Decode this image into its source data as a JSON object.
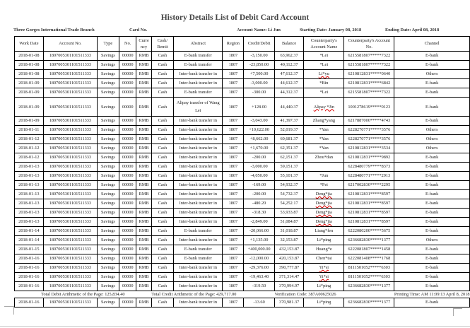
{
  "title": "History Details List of Debit Card Account",
  "info": {
    "branch": "Three Gorges International Trade Branch",
    "card_no": "Card No.",
    "account_name": "Account Name: Li Jun",
    "start": "Starting Date: January 08, 2018",
    "end": "Ending Date: April 08, 2018"
  },
  "headers": [
    "Work Date",
    "Account No.",
    "Type",
    "No.",
    "Curre ncy",
    "Cash/ Remit",
    "Abstract",
    "Region",
    "Credit/Debit",
    "Balance",
    "Counterparty's Account Name",
    "Counterparty's Account No.",
    "Channel"
  ],
  "rows": [
    [
      "2018-01-08",
      "1807005301101511333",
      "Savings",
      "00000",
      "RMB",
      "Cash",
      "E-bank transfer",
      "1807",
      "-3,150.00",
      "63,962.37",
      "*Lei",
      "6215581807*****7322",
      "E-bank"
    ],
    [
      "2018-01-08",
      "1807005301101511333",
      "Savings",
      "00000",
      "RMB",
      "Cash",
      "E-bank transfer",
      "1807",
      "-23,850.00",
      "40,112.37",
      "*Lei",
      "6215581807*****7322",
      "E-bank"
    ],
    [
      "2018-01-08",
      "1807005301101511333",
      "Savings",
      "00000",
      "RMB",
      "Cash",
      "Inter-bank transfer in",
      "1807",
      "+7,500.00",
      "47,612.37",
      "Li*yu",
      "6210812831*****0640",
      "Others"
    ],
    [
      "2018-01-09",
      "1807005301101511333",
      "Savings",
      "00000",
      "RMB",
      "Cash",
      "Inter-bank transfer in",
      "1807",
      "-3,000.00",
      "44,612.37",
      "*Bin",
      "6210812831*****6842",
      "E-bank"
    ],
    [
      "2018-01-09",
      "1807005301101511333",
      "Savings",
      "00000",
      "RMB",
      "Cash",
      "E-bank transfer",
      "1807",
      "-300.00",
      "44,312.37",
      "*Lei",
      "6215581807*****7322",
      "E-bank"
    ],
    [
      "2018-01-09",
      "1807005301101511333",
      "Savings",
      "00000",
      "RMB",
      "Cash",
      "Alipay transfer of Wang Lei",
      "1807",
      "+128.00",
      "44,440.37",
      "Alipay *Jin",
      "1001278619*****0123",
      "E-bank"
    ],
    [
      "2018-01-09",
      "1807005301101511333",
      "Savings",
      "00000",
      "RMB",
      "Cash",
      "Inter-bank transfer in",
      "1807",
      "-3,043.00",
      "41,397.37",
      "Zhang*yang",
      "6217887000*****4743",
      "E-bank"
    ],
    [
      "2018-01-11",
      "1807005301101511333",
      "Savings",
      "00000",
      "RMB",
      "Cash",
      "Inter-bank transfer in",
      "1807",
      "+10,622.00",
      "52,019.37",
      "*Yan",
      "6228270771*****3576",
      "Others"
    ],
    [
      "2018-01-12",
      "1807005301101511333",
      "Savings",
      "00000",
      "RMB",
      "Cash",
      "Inter-bank transfer in",
      "1807",
      "+8,662.00",
      "60,681.37",
      "*Yan",
      "6228270771*****3576",
      "Others"
    ],
    [
      "2018-01-12",
      "1807005301101511333",
      "Savings",
      "00000",
      "RMB",
      "Cash",
      "Inter-bank transfer in",
      "1807",
      "+1,670.00",
      "62,351.37",
      "*Yan",
      "6210812831*****3534",
      "Others"
    ],
    [
      "2018-01-12",
      "1807005301101511333",
      "Savings",
      "00000",
      "RMB",
      "Cash",
      "Inter-bank transfer in",
      "1807",
      "-200.00",
      "62,151.37",
      "Zhou*dan",
      "6210812831*****9892",
      "E-bank"
    ],
    [
      "2018-01-13",
      "1807005301101511333",
      "Savings",
      "00000",
      "RMB",
      "Cash",
      "Inter-bank transfer in",
      "1807",
      "-3,000.00",
      "59,151.37",
      "",
      "6228480779*****8373",
      "E-bank"
    ],
    [
      "2018-01-13",
      "1807005301101511333",
      "Savings",
      "00000",
      "RMB",
      "Cash",
      "Inter-bank transfer in",
      "1807",
      "-4,050.00",
      "55,101.37",
      "*Jun",
      "6228480771*****2913",
      "E-bank"
    ],
    [
      "2018-01-13",
      "1807005301101511333",
      "Savings",
      "00000",
      "RMB",
      "Cash",
      "Inter-bank transfer in",
      "1807",
      "-169.00",
      "54,932.37",
      "*Fei",
      "6217002830*****2295",
      "E-bank"
    ],
    [
      "2018-01-13",
      "1807005301101511333",
      "Savings",
      "00000",
      "RMB",
      "Cash",
      "Inter-bank transfer in",
      "1807",
      "-200.00",
      "54,732.37",
      "Deng*jia",
      "6210812831*****8597",
      "E-bank"
    ],
    [
      "2018-01-13",
      "1807005301101511333",
      "Savings",
      "00000",
      "RMB",
      "Cash",
      "Inter-bank transfer in",
      "1807",
      "-480.20",
      "54,252.17",
      "Deng*jia",
      "6210812831*****8597",
      "E-bank"
    ],
    [
      "2018-01-13",
      "1807005301101511333",
      "Savings",
      "00000",
      "RMB",
      "Cash",
      "Inter-bank transfer in",
      "1807",
      "-318.30",
      "53,933.87",
      "Deng*jia",
      "6210812831*****8597",
      "E-bank"
    ],
    [
      "2018-01-13",
      "1807005301101511333",
      "Savings",
      "00000",
      "RMB",
      "Cash",
      "Inter-bank transfer in",
      "1807",
      "-2,849.00",
      "51,084.87",
      "Deng*jia",
      "6210812831*****8597",
      "E-bank"
    ],
    [
      "2018-01-14",
      "1807005301101511333",
      "Savings",
      "00000",
      "RMB",
      "Cash",
      "E-bank transfer",
      "1807",
      "-20,066.00",
      "31,018.87",
      "Liang*fen",
      "6222080200*****5675",
      "E-bank"
    ],
    [
      "2018-01-14",
      "1807005301101511333",
      "Savings",
      "00000",
      "RMB",
      "Cash",
      "Inter-bank transfer in",
      "1807",
      "+1,135.00",
      "32,153.87",
      "Li*ping",
      "6236682830*****1377",
      "Others"
    ],
    [
      "2018-01-15",
      "1807005301101511333",
      "Savings",
      "00000",
      "RMB",
      "Cash",
      "E-bank transfer",
      "1807",
      "+400,000.00",
      "432,153.87",
      "Huang*e",
      "6222081807*****1458",
      "E-bank"
    ],
    [
      "2018-01-16",
      "1807005301101511333",
      "Savings",
      "00000",
      "RMB",
      "Cash",
      "E-bank transfer",
      "1807",
      "-12,000.00",
      "420,153.87",
      "Chen*tai",
      "6222081408*****1768",
      "E-bank"
    ],
    [
      "2018-01-16",
      "1807005301101511333",
      "Savings",
      "00000",
      "RMB",
      "Cash",
      "Inter-bank transfer in",
      "1807",
      "-29,376.00",
      "390,777.87",
      "Yi*si",
      "8111501052*****6303",
      "E-bank"
    ],
    [
      "2018-01-16",
      "1807005301101511333",
      "Savings",
      "00000",
      "RMB",
      "Cash",
      "Inter-bank transfer in",
      "1807",
      "-19,463.40",
      "371,314.47",
      "Yi*si",
      "8111501052*****6303",
      "E-bank"
    ],
    [
      "2018-01-16",
      "1807005301101511333",
      "Savings",
      "00000",
      "RMB",
      "Cash",
      "Inter-bank transfer in",
      "1807",
      "-319.50",
      "370,994.97",
      "Li*ping",
      "6236682830*****1377",
      "E-bank"
    ]
  ],
  "summary": {
    "debit": "Total Debit Arithmetic of the Page: 125,834.40",
    "credit": "Total Credit Arithmetic of the Page: 429,717.00",
    "verification": "Verification Code: 387A00625026",
    "printing": "Printing Time: AM 11:09:13 April 8, 2018"
  },
  "last_row": [
    "2018-01-16",
    "1807005301101511333",
    "Savings",
    "00000",
    "RMB",
    "Cash",
    "Inter-bank transfer in",
    "1807",
    "-13.60",
    "370,981.37",
    "Li*ping",
    "6236682830*****1377",
    "E-bank"
  ]
}
